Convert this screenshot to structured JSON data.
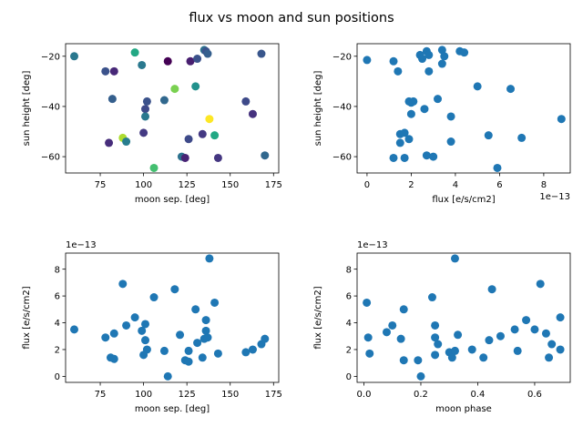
{
  "figure": {
    "suptitle": "flux vs moon and sun positions"
  },
  "chart_data": [
    {
      "type": "scatter",
      "xlabel": "moon sep. [deg]",
      "ylabel": "sun height [deg]",
      "xlim": [
        55,
        178
      ],
      "ylim": [
        -66.5,
        -15
      ],
      "xticks": [
        75,
        100,
        125,
        150,
        175
      ],
      "xtick_labels": [
        "75",
        "100",
        "125",
        "150",
        "175"
      ],
      "yticks": [
        -60,
        -40,
        -20
      ],
      "ytick_labels": [
        "−60",
        "−40",
        "−20"
      ],
      "offset_label": "",
      "color_by": "flux",
      "points": [
        {
          "x": 60,
          "y": -20,
          "c": "#2a788e"
        },
        {
          "x": 78,
          "y": -26,
          "c": "#3b528b"
        },
        {
          "x": 83,
          "y": -26,
          "c": "#482878"
        },
        {
          "x": 82,
          "y": -37,
          "c": "#355f8d"
        },
        {
          "x": 80,
          "y": -54.5,
          "c": "#472d7b"
        },
        {
          "x": 88,
          "y": -52.5,
          "c": "#addc30"
        },
        {
          "x": 90,
          "y": -54,
          "c": "#287d8e"
        },
        {
          "x": 95,
          "y": -18.5,
          "c": "#22a884"
        },
        {
          "x": 99,
          "y": -23.5,
          "c": "#2a788e"
        },
        {
          "x": 100,
          "y": -50.5,
          "c": "#443a83"
        },
        {
          "x": 101,
          "y": -41,
          "c": "#3e4a89"
        },
        {
          "x": 102,
          "y": -38,
          "c": "#3b528b"
        },
        {
          "x": 101,
          "y": -44,
          "c": "#2a788e"
        },
        {
          "x": 106,
          "y": -64.5,
          "c": "#44bf70"
        },
        {
          "x": 112,
          "y": -37.5,
          "c": "#31688e"
        },
        {
          "x": 114,
          "y": -22,
          "c": "#440154"
        },
        {
          "x": 118,
          "y": -33,
          "c": "#7ad151"
        },
        {
          "x": 122,
          "y": -60,
          "c": "#2c728e"
        },
        {
          "x": 124,
          "y": -60.5,
          "c": "#482475"
        },
        {
          "x": 126,
          "y": -53,
          "c": "#3e4a89"
        },
        {
          "x": 127,
          "y": -22,
          "c": "#481f70"
        },
        {
          "x": 130,
          "y": -32,
          "c": "#21918c"
        },
        {
          "x": 131,
          "y": -21,
          "c": "#3b528b"
        },
        {
          "x": 134,
          "y": -51,
          "c": "#443983"
        },
        {
          "x": 135,
          "y": -17.5,
          "c": "#2c728e"
        },
        {
          "x": 136,
          "y": -18,
          "c": "#3b528b"
        },
        {
          "x": 137,
          "y": -19,
          "c": "#355f8d"
        },
        {
          "x": 138,
          "y": -45,
          "c": "#fde725"
        },
        {
          "x": 141,
          "y": -51.5,
          "c": "#22a884"
        },
        {
          "x": 143,
          "y": -60.5,
          "c": "#453781"
        },
        {
          "x": 159,
          "y": -38,
          "c": "#3e4a89"
        },
        {
          "x": 163,
          "y": -43,
          "c": "#46327e"
        },
        {
          "x": 168,
          "y": -19,
          "c": "#39568c"
        },
        {
          "x": 170,
          "y": -59.5,
          "c": "#31688e"
        }
      ]
    },
    {
      "type": "scatter",
      "xlabel": "flux [e/s/cm2]",
      "ylabel": "sun height [deg]",
      "xlim": [
        -0.45,
        9.2
      ],
      "ylim": [
        -66.5,
        -15
      ],
      "xticks": [
        0,
        2,
        4,
        6,
        8
      ],
      "xtick_labels": [
        "0",
        "2",
        "4",
        "6",
        "8"
      ],
      "yticks": [
        -60,
        -40,
        -20
      ],
      "ytick_labels": [
        "−60",
        "−40",
        "−20"
      ],
      "offset_label": "1e−13",
      "offset_axis": "x",
      "color": "#1f77b4",
      "points": [
        {
          "x": 0.0,
          "y": -21.5
        },
        {
          "x": 1.2,
          "y": -22
        },
        {
          "x": 1.4,
          "y": -26
        },
        {
          "x": 1.2,
          "y": -60.5
        },
        {
          "x": 1.5,
          "y": -51
        },
        {
          "x": 1.5,
          "y": -54.5
        },
        {
          "x": 1.7,
          "y": -50.5
        },
        {
          "x": 1.7,
          "y": -60.5
        },
        {
          "x": 1.9,
          "y": -38
        },
        {
          "x": 2.0,
          "y": -38.5
        },
        {
          "x": 2.0,
          "y": -43
        },
        {
          "x": 2.1,
          "y": -38
        },
        {
          "x": 1.9,
          "y": -53
        },
        {
          "x": 2.4,
          "y": -19.5
        },
        {
          "x": 2.5,
          "y": -21
        },
        {
          "x": 2.7,
          "y": -18
        },
        {
          "x": 2.8,
          "y": -19.5
        },
        {
          "x": 2.8,
          "y": -26
        },
        {
          "x": 2.6,
          "y": -41
        },
        {
          "x": 2.7,
          "y": -59.5
        },
        {
          "x": 3.0,
          "y": -60
        },
        {
          "x": 3.2,
          "y": -37
        },
        {
          "x": 3.4,
          "y": -17.5
        },
        {
          "x": 3.4,
          "y": -23
        },
        {
          "x": 3.5,
          "y": -20
        },
        {
          "x": 3.8,
          "y": -44
        },
        {
          "x": 3.8,
          "y": -54
        },
        {
          "x": 4.2,
          "y": -18
        },
        {
          "x": 4.4,
          "y": -18.5
        },
        {
          "x": 5.0,
          "y": -32
        },
        {
          "x": 5.5,
          "y": -51.5
        },
        {
          "x": 5.9,
          "y": -64.5
        },
        {
          "x": 6.5,
          "y": -33
        },
        {
          "x": 7.0,
          "y": -52.5
        },
        {
          "x": 8.8,
          "y": -45
        }
      ]
    },
    {
      "type": "scatter",
      "xlabel": "moon sep. [deg]",
      "ylabel": "flux [e/s/cm2]",
      "xlim": [
        55,
        178
      ],
      "ylim": [
        -0.45,
        9.2
      ],
      "xticks": [
        75,
        100,
        125,
        150,
        175
      ],
      "xtick_labels": [
        "75",
        "100",
        "125",
        "150",
        "175"
      ],
      "yticks": [
        0,
        2,
        4,
        6,
        8
      ],
      "ytick_labels": [
        "0",
        "2",
        "4",
        "6",
        "8"
      ],
      "offset_label": "1e−13",
      "offset_axis": "y",
      "color": "#1f77b4",
      "points": [
        {
          "x": 60,
          "y": 3.5
        },
        {
          "x": 78,
          "y": 2.9
        },
        {
          "x": 81,
          "y": 1.4
        },
        {
          "x": 83,
          "y": 1.3
        },
        {
          "x": 83,
          "y": 3.2
        },
        {
          "x": 88,
          "y": 6.9
        },
        {
          "x": 90,
          "y": 3.8
        },
        {
          "x": 95,
          "y": 4.4
        },
        {
          "x": 99,
          "y": 3.4
        },
        {
          "x": 100,
          "y": 1.6
        },
        {
          "x": 101,
          "y": 3.9
        },
        {
          "x": 101,
          "y": 2.7
        },
        {
          "x": 102,
          "y": 2.0
        },
        {
          "x": 106,
          "y": 5.9
        },
        {
          "x": 112,
          "y": 1.9
        },
        {
          "x": 114,
          "y": 0.0
        },
        {
          "x": 118,
          "y": 6.5
        },
        {
          "x": 121,
          "y": 3.1
        },
        {
          "x": 124,
          "y": 1.2
        },
        {
          "x": 126,
          "y": 1.1
        },
        {
          "x": 126,
          "y": 1.9
        },
        {
          "x": 130,
          "y": 5.0
        },
        {
          "x": 131,
          "y": 2.5
        },
        {
          "x": 134,
          "y": 1.4
        },
        {
          "x": 135,
          "y": 2.8
        },
        {
          "x": 136,
          "y": 4.2
        },
        {
          "x": 136,
          "y": 3.4
        },
        {
          "x": 137,
          "y": 2.9
        },
        {
          "x": 138,
          "y": 8.8
        },
        {
          "x": 141,
          "y": 5.5
        },
        {
          "x": 143,
          "y": 1.7
        },
        {
          "x": 159,
          "y": 1.8
        },
        {
          "x": 163,
          "y": 2.0
        },
        {
          "x": 168,
          "y": 2.4
        },
        {
          "x": 170,
          "y": 2.8
        }
      ]
    },
    {
      "type": "scatter",
      "xlabel": "moon phase",
      "ylabel": "flux [e/s/cm2]",
      "xlim": [
        -0.024,
        0.725
      ],
      "ylim": [
        -0.45,
        9.2
      ],
      "xticks": [
        0.0,
        0.2,
        0.4,
        0.6
      ],
      "xtick_labels": [
        "0.0",
        "0.2",
        "0.4",
        "0.6"
      ],
      "yticks": [
        0,
        2,
        4,
        6,
        8
      ],
      "ytick_labels": [
        "0",
        "2",
        "4",
        "6",
        "8"
      ],
      "offset_label": "1e−13",
      "offset_axis": "y",
      "color": "#1f77b4",
      "points": [
        {
          "x": 0.01,
          "y": 5.5
        },
        {
          "x": 0.015,
          "y": 2.9
        },
        {
          "x": 0.02,
          "y": 1.7
        },
        {
          "x": 0.08,
          "y": 3.3
        },
        {
          "x": 0.1,
          "y": 3.8
        },
        {
          "x": 0.13,
          "y": 2.8
        },
        {
          "x": 0.14,
          "y": 5.0
        },
        {
          "x": 0.14,
          "y": 1.2
        },
        {
          "x": 0.19,
          "y": 1.2
        },
        {
          "x": 0.2,
          "y": 0.0
        },
        {
          "x": 0.24,
          "y": 5.9
        },
        {
          "x": 0.25,
          "y": 3.8
        },
        {
          "x": 0.25,
          "y": 2.9
        },
        {
          "x": 0.26,
          "y": 2.4
        },
        {
          "x": 0.25,
          "y": 1.6
        },
        {
          "x": 0.3,
          "y": 1.8
        },
        {
          "x": 0.31,
          "y": 1.4
        },
        {
          "x": 0.32,
          "y": 1.9
        },
        {
          "x": 0.32,
          "y": 8.8
        },
        {
          "x": 0.33,
          "y": 3.1
        },
        {
          "x": 0.38,
          "y": 2.0
        },
        {
          "x": 0.42,
          "y": 1.4
        },
        {
          "x": 0.44,
          "y": 2.7
        },
        {
          "x": 0.45,
          "y": 6.5
        },
        {
          "x": 0.48,
          "y": 3.0
        },
        {
          "x": 0.53,
          "y": 3.5
        },
        {
          "x": 0.54,
          "y": 1.9
        },
        {
          "x": 0.57,
          "y": 4.2
        },
        {
          "x": 0.6,
          "y": 3.5
        },
        {
          "x": 0.62,
          "y": 6.9
        },
        {
          "x": 0.64,
          "y": 3.2
        },
        {
          "x": 0.65,
          "y": 1.4
        },
        {
          "x": 0.66,
          "y": 2.4
        },
        {
          "x": 0.69,
          "y": 4.4
        },
        {
          "x": 0.69,
          "y": 2.0
        }
      ]
    }
  ]
}
